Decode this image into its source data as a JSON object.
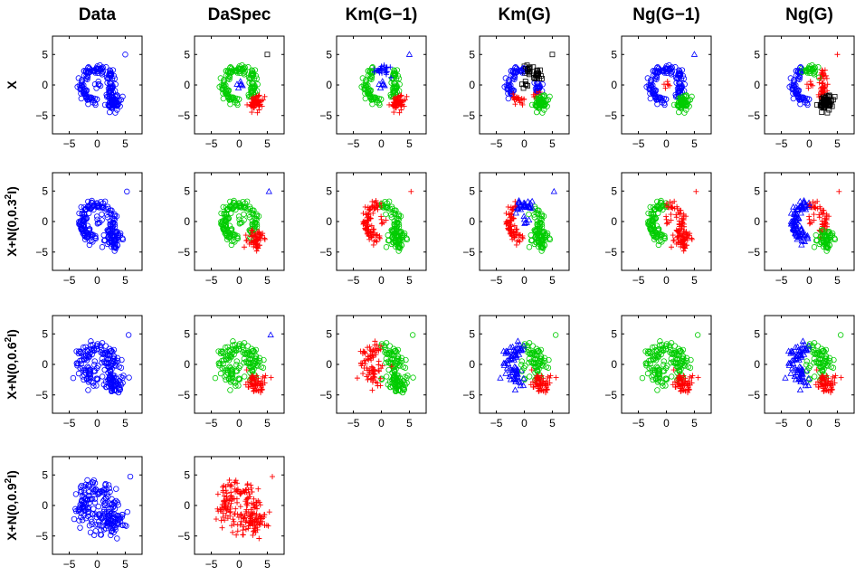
{
  "chart_data": {
    "type": "scatter",
    "columns": [
      "Data",
      "DaSpec",
      "Km(G−1)",
      "Km(G)",
      "Ng(G−1)",
      "Ng(G)"
    ],
    "rows": [
      {
        "label": "X",
        "noise": 0.0
      },
      {
        "label": "X+N(0,0.3²I)",
        "label_base": "X+N(0,0.3",
        "label_sup": "2",
        "label_tail": "I)",
        "noise": 0.3
      },
      {
        "label": "X+N(0,0.6²I)",
        "label_base": "X+N(0,0.6",
        "label_sup": "2",
        "label_tail": "I)",
        "noise": 0.6
      },
      {
        "label": "X+N(0,0.9²I)",
        "label_base": "X+N(0,0.9",
        "label_sup": "2",
        "label_tail": "I)",
        "noise": 0.9
      }
    ],
    "xlim": [
      -8,
      8
    ],
    "ylim": [
      -8,
      8
    ],
    "xticks": [
      -5,
      0,
      5
    ],
    "yticks": [
      5,
      0,
      -5
    ],
    "clusters": {
      "ring": {
        "shape": "arc",
        "center": [
          0,
          0
        ],
        "radius": 2.7,
        "angle_range_deg": [
          -50,
          270
        ],
        "points": 150
      },
      "blob": {
        "shape": "gaussian",
        "center": [
          3,
          -3
        ],
        "std": 0.6,
        "points": 60
      },
      "center": {
        "shape": "gaussian",
        "center": [
          0,
          0
        ],
        "std": 0.3,
        "points": 6
      },
      "outlier": {
        "shape": "point",
        "center": [
          5,
          5
        ],
        "points": 1
      }
    },
    "colors": {
      "blue": "#0000ff",
      "green": "#00cc00",
      "red": "#ff0000",
      "black": "#000000"
    },
    "panels": [
      {
        "row": 0,
        "col": 0,
        "ring": "blue-o",
        "blob": "blue-o",
        "center": "blue-o",
        "outlier": "blue-o"
      },
      {
        "row": 0,
        "col": 1,
        "ring": "green-o",
        "blob": "red-+",
        "center": "blue-^",
        "outlier": "black-s"
      },
      {
        "row": 0,
        "col": 2,
        "ring": "split:left=green-o,top=blue-+",
        "blob": "red-+",
        "center": "blue-^",
        "outlier": "blue-^"
      },
      {
        "row": 0,
        "col": 3,
        "ring": "split:left=blue-o,topright=black-s,bottom=red-+",
        "blob": "green-o",
        "center": "black-s",
        "outlier": "black-s"
      },
      {
        "row": 0,
        "col": 4,
        "ring": "blue-o",
        "blob": "green-o",
        "center": "red-+",
        "outlier": "blue-^"
      },
      {
        "row": 0,
        "col": 5,
        "ring": "split:left=blue-o,top=green-o,right=red-+",
        "blob": "black-s",
        "center": "red-+",
        "outlier": "red-+"
      },
      {
        "row": 1,
        "col": 0,
        "ring": "blue-o",
        "blob": "blue-o",
        "center": "blue-o",
        "outlier": "blue-o"
      },
      {
        "row": 1,
        "col": 1,
        "ring": "green-o",
        "blob": "red-+",
        "center": "green-o",
        "outlier": "blue-^"
      },
      {
        "row": 1,
        "col": 2,
        "ring": "split:left=red-+,right=green-o",
        "blob": "green-o",
        "center": "red-+",
        "outlier": "red-+"
      },
      {
        "row": 1,
        "col": 3,
        "ring": "split:left=red-+,top=blue-^,right=green-o",
        "blob": "green-o",
        "center": "blue-^",
        "outlier": "blue-^"
      },
      {
        "row": 1,
        "col": 4,
        "ring": "split:left=green-o,right=red-+",
        "blob": "red-+",
        "center": "red-+",
        "outlier": "red-+"
      },
      {
        "row": 1,
        "col": 5,
        "ring": "split:left=blue-^,right=red-+",
        "blob": "green-o",
        "center": "red-+",
        "outlier": "red-+"
      },
      {
        "row": 2,
        "col": 0,
        "ring": "blue-o",
        "blob": "blue-o",
        "center": "blue-o",
        "outlier": "blue-o"
      },
      {
        "row": 2,
        "col": 1,
        "ring": "green-o",
        "blob": "red-+",
        "center": "green-o",
        "outlier": "blue-^"
      },
      {
        "row": 2,
        "col": 2,
        "ring": "split:left=red-+,right=green-o",
        "blob": "green-o",
        "center": "red-+",
        "outlier": "green-o"
      },
      {
        "row": 2,
        "col": 3,
        "ring": "split:left=blue-^,right=green-o",
        "blob": "red-+",
        "center": "green-o",
        "outlier": "green-o"
      },
      {
        "row": 2,
        "col": 4,
        "ring": "green-o",
        "blob": "red-+",
        "center": "green-o",
        "outlier": "green-o"
      },
      {
        "row": 2,
        "col": 5,
        "ring": "split:left=blue-^,right=green-o",
        "blob": "red-+",
        "center": "green-o",
        "outlier": "green-o"
      },
      {
        "row": 3,
        "col": 0,
        "ring": "blue-o",
        "blob": "blue-o",
        "center": "blue-o",
        "outlier": "blue-o"
      },
      {
        "row": 3,
        "col": 1,
        "ring": "red-+",
        "blob": "red-+",
        "center": "red-+",
        "outlier": "red-+"
      }
    ]
  }
}
